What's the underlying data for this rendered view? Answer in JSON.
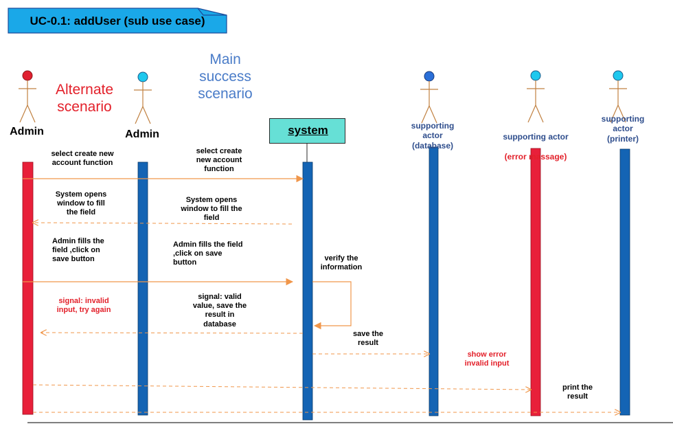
{
  "title": "UC-0.1: addUser (sub use case)",
  "system_label": "system",
  "labels": {
    "alternate": "Alternate\nscenario",
    "main": "Main\nsuccess\nscenario"
  },
  "actors": [
    {
      "id": "admin-alt",
      "name": "Admin",
      "head_color": "#e02030"
    },
    {
      "id": "admin-main",
      "name": "Admin",
      "head_color": "#1ec8ee"
    },
    {
      "id": "database",
      "name": "supporting\nactor\n(database)",
      "head_color": "#2a6fd8"
    },
    {
      "id": "error",
      "name_prefix": "supporting actor",
      "name_suffix": "(error massage)",
      "head_color": "#1ec8ee"
    },
    {
      "id": "printer",
      "name": "supporting\nactor\n(printer)",
      "head_color": "#1ec8ee"
    }
  ],
  "messages": {
    "m1_alt": "select create new\naccount function",
    "m1_main": "select create\nnew account\nfunction",
    "m2_alt": "System opens\nwindow to fill\nthe field",
    "m2_main": "System opens\nwindow to fill the\nfield",
    "m3_alt": "Admin fills the\nfield ,click on\nsave button",
    "m3_main": "Admin fills the field\n,click on save\nbutton",
    "verify": "verify the\ninformation",
    "invalid": "signal: invalid\ninput, try again",
    "valid": "signal: valid\nvalue, save the\nresult  in\ndatabase",
    "save": "save the\nresult",
    "show_error": "show error\ninvalid input",
    "print": "print the\nresult"
  },
  "colors": {
    "red_bar": "#e8203a",
    "blue_bar": "#1464b4",
    "arrow": "#f0964a",
    "actor_body": "#c08040",
    "title_fill": "#1aa8e8",
    "system_fill": "#66e0d6"
  }
}
